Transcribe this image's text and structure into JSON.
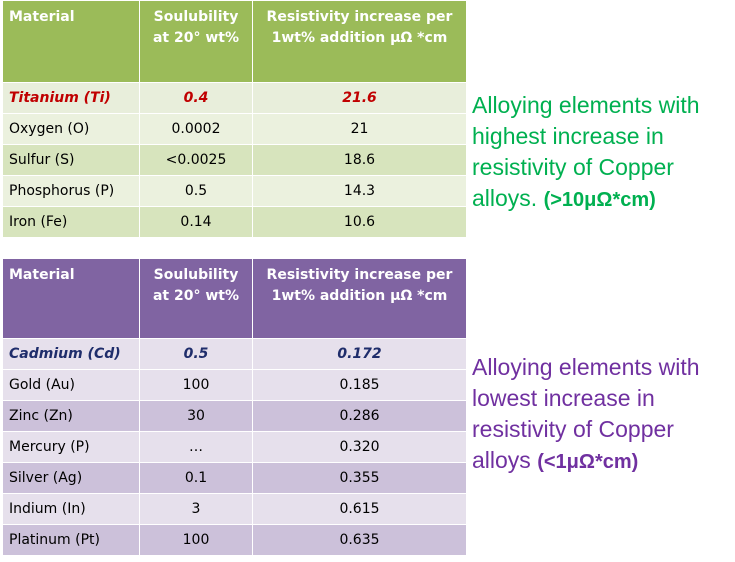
{
  "high_table": {
    "headers": {
      "material": "Material",
      "solubility_line1": "Soulubility",
      "solubility_line2": "at 20° wt%",
      "resistivity_line1": "Resistivity increase per",
      "resistivity_line2": "1wt% addition μΩ *cm"
    },
    "rows": [
      {
        "material": "Titanium (Ti)",
        "solubility": "0.4",
        "resistivity": "21.6"
      },
      {
        "material": "Oxygen (O)",
        "solubility": "0.0002",
        "resistivity": "21"
      },
      {
        "material": "Sulfur (S)",
        "solubility": "<0.0025",
        "resistivity": "18.6"
      },
      {
        "material": "Phosphorus (P)",
        "solubility": "0.5",
        "resistivity": "14.3"
      },
      {
        "material": "Iron (Fe)",
        "solubility": "0.14",
        "resistivity": "10.6"
      }
    ]
  },
  "low_table": {
    "headers": {
      "material": "Material",
      "solubility_line1": "Soulubility",
      "solubility_line2": "at 20° wt%",
      "resistivity_line1": "Resistivity increase per",
      "resistivity_line2": "1wt% addition μΩ *cm"
    },
    "rows": [
      {
        "material": "Cadmium (Cd)",
        "solubility": "0.5",
        "resistivity": "0.172"
      },
      {
        "material": "Gold (Au)",
        "solubility": "100",
        "resistivity": "0.185"
      },
      {
        "material": "Zinc (Zn)",
        "solubility": "30",
        "resistivity": "0.286"
      },
      {
        "material": "Mercury (P)",
        "solubility": "…",
        "resistivity": "0.320"
      },
      {
        "material": "Silver (Ag)",
        "solubility": "0.1",
        "resistivity": "0.355"
      },
      {
        "material": "Indium (In)",
        "solubility": "3",
        "resistivity": "0.615"
      },
      {
        "material": "Platinum (Pt)",
        "solubility": "100",
        "resistivity": "0.635"
      }
    ]
  },
  "notes": {
    "high": {
      "line1": "Alloying elements with",
      "line2": "highest increase in",
      "line3": "resistivity of Copper",
      "line4": "alloys.",
      "emphasis": "(>10μΩ*cm)"
    },
    "low": {
      "line1": "Alloying elements with",
      "line2": "lowest increase in",
      "line3": "resistivity of Copper",
      "line4": "alloys",
      "emphasis": "(<1μΩ*cm)"
    }
  },
  "colors": {
    "high_header": "#9bbb59",
    "high_highlight_text": "#c00000",
    "low_header": "#8064a2",
    "low_highlight_text": "#1f2d6b",
    "high_note": "#00b050",
    "low_note": "#7030a0"
  }
}
